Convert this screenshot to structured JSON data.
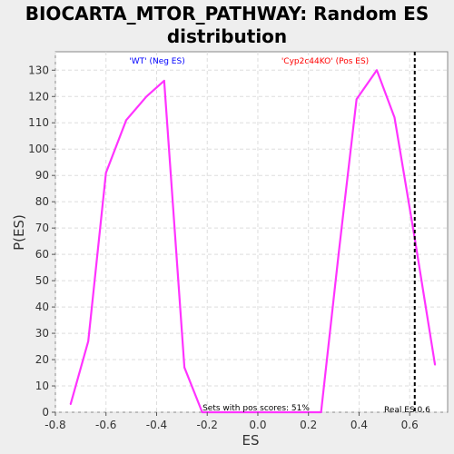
{
  "chart_data": {
    "type": "line",
    "title_line1": "BIOCARTA_MTOR_PATHWAY: Random ES",
    "title_line2": "distribution",
    "xlabel": "ES",
    "ylabel": "P(ES)",
    "xlim": [
      -0.8,
      0.75
    ],
    "ylim": [
      0,
      137
    ],
    "x_ticks": [
      -0.8,
      -0.6,
      -0.4,
      -0.2,
      0.0,
      0.2,
      0.4,
      0.6
    ],
    "x_tick_labels": [
      "-0.8",
      "-0.6",
      "-0.4",
      "-0.2",
      "0.0",
      "0.2",
      "0.4",
      "0.6"
    ],
    "y_ticks": [
      0,
      10,
      20,
      30,
      40,
      50,
      60,
      70,
      80,
      90,
      100,
      110,
      120,
      130
    ],
    "y_tick_labels": [
      "0",
      "10",
      "20",
      "30",
      "40",
      "50",
      "60",
      "70",
      "80",
      "90",
      "100",
      "110",
      "120",
      "130"
    ],
    "grid": true,
    "series": [
      {
        "color": "#ff33ff",
        "x": [
          -0.74,
          -0.67,
          -0.6,
          -0.52,
          -0.44,
          -0.37,
          -0.29,
          -0.22,
          -0.15,
          -0.07,
          0.01,
          0.09,
          0.17,
          0.25,
          0.32,
          0.39,
          0.47,
          0.54,
          0.62,
          0.7
        ],
        "y": [
          3,
          27,
          91,
          111,
          120,
          126,
          17,
          0,
          0,
          0,
          0,
          0,
          0,
          0,
          61,
          119,
          130,
          112,
          66,
          18
        ]
      }
    ],
    "real_es": 0.62,
    "real_es_color": "#000000",
    "annotations": {
      "neg_label": "'WT' (Neg ES)",
      "neg_color": "#0000ff",
      "pos_label": "'Cyp2c44KO' (Pos ES)",
      "pos_color": "#ff0000",
      "sets_label": "Sets with pos scores: 51%",
      "real_es_label": "Real ES 0.6"
    }
  }
}
